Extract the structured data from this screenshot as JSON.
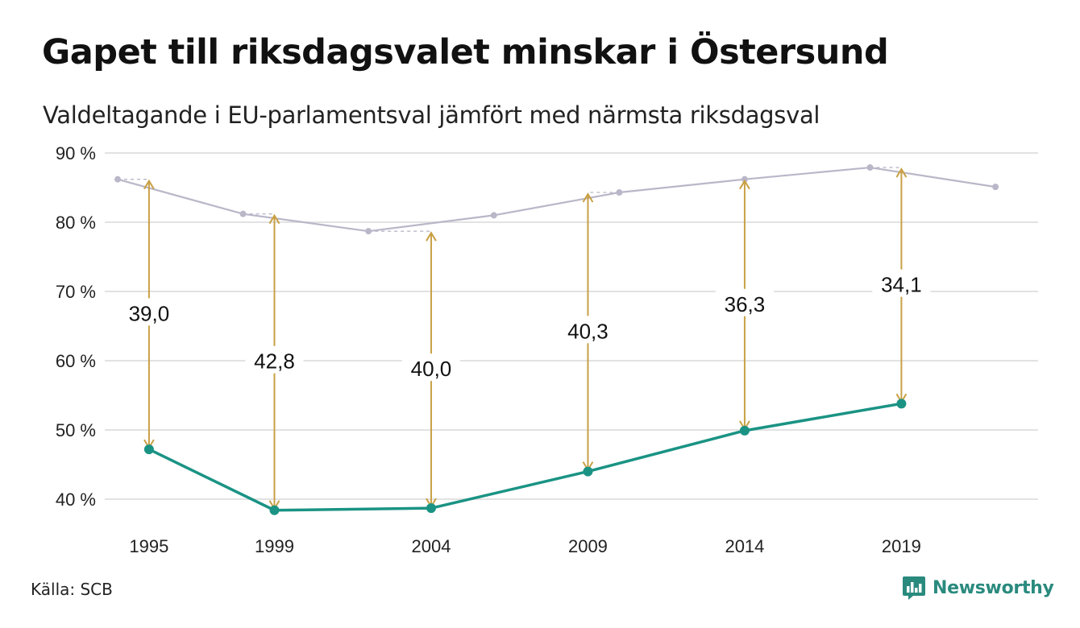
{
  "title": "Gapet till riksdagsvalet minskar i Östersund",
  "subtitle": "Valdeltagande i EU-parlamentsval jämfört med närmsta riksdagsval",
  "source": "Källa: SCB",
  "brand": "Newsworthy",
  "colors": {
    "eu": "#1a9384",
    "riksdag": "#b9b7c8",
    "arrow": "#c9a045",
    "grid": "#e2e2e2"
  },
  "chart_data": {
    "type": "line",
    "title": "Gapet till riksdagsvalet minskar i Östersund",
    "subtitle": "Valdeltagande i EU-parlamentsval jämfört med närmsta riksdagsval",
    "ylim": [
      40,
      90
    ],
    "yticks": [
      40,
      50,
      60,
      70,
      80,
      90
    ],
    "ytick_labels": [
      "40 %",
      "50 %",
      "60 %",
      "70 %",
      "80 %",
      "90 %"
    ],
    "xlim": [
      1994,
      2023
    ],
    "xticks": [
      1995,
      1999,
      2004,
      2009,
      2014,
      2019
    ],
    "xtick_labels": [
      "1995",
      "1999",
      "2004",
      "2009",
      "2014",
      "2019"
    ],
    "grid": true,
    "series": [
      {
        "key": "riksdag",
        "x": [
          1994,
          1998,
          2002,
          2006,
          2010,
          2014,
          2018,
          2022
        ],
        "values": [
          86.2,
          81.2,
          78.7,
          81.0,
          84.3,
          86.2,
          87.9,
          85.1
        ]
      },
      {
        "key": "eu",
        "x": [
          1995,
          1999,
          2004,
          2009,
          2014,
          2019
        ],
        "values": [
          47.2,
          38.4,
          38.7,
          44.0,
          49.9,
          53.8
        ]
      }
    ],
    "gaps": [
      {
        "x": 1995,
        "from": 47.2,
        "to": 86.2,
        "label": "39,0"
      },
      {
        "x": 1999,
        "from": 38.4,
        "to": 81.2,
        "label": "42,8"
      },
      {
        "x": 2004,
        "from": 38.7,
        "to": 78.7,
        "label": "40,0"
      },
      {
        "x": 2009,
        "from": 44.0,
        "to": 84.3,
        "label": "40,3"
      },
      {
        "x": 2014,
        "from": 49.9,
        "to": 86.2,
        "label": "36,3"
      },
      {
        "x": 2019,
        "from": 53.8,
        "to": 87.9,
        "label": "34,1"
      }
    ]
  }
}
